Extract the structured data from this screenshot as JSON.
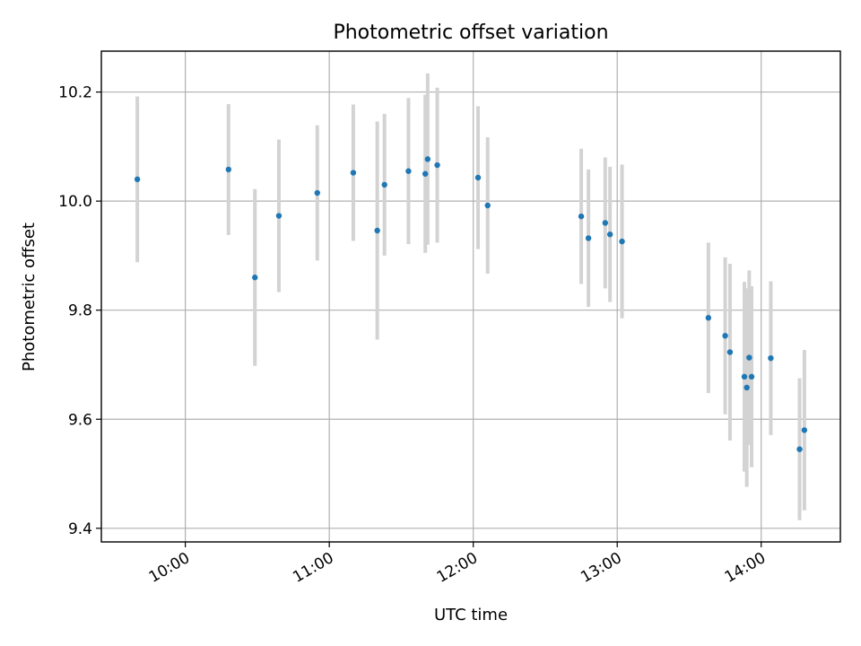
{
  "chart_data": {
    "type": "scatter",
    "title": "Photometric offset variation",
    "xlabel": "UTC time",
    "ylabel": "Photometric offset",
    "x_is_time": true,
    "xlim": [
      "09:25",
      "14:33"
    ],
    "ylim": [
      9.375,
      10.275
    ],
    "grid": true,
    "x_ticks": [
      "10:00",
      "11:00",
      "12:00",
      "13:00",
      "14:00"
    ],
    "y_ticks": [
      "9.4",
      "9.6",
      "9.8",
      "10.0",
      "10.2"
    ],
    "colors": {
      "point": "#1f77b4",
      "errorbar": "#d3d3d3",
      "grid": "#b0b0b0"
    },
    "series": [
      {
        "points": [
          {
            "t": "09:40",
            "y": 10.04,
            "err": 0.152
          },
          {
            "t": "10:18",
            "y": 10.058,
            "err": 0.12
          },
          {
            "t": "10:29",
            "y": 9.86,
            "err": 0.162
          },
          {
            "t": "10:39",
            "y": 9.973,
            "err": 0.14
          },
          {
            "t": "10:55",
            "y": 10.015,
            "err": 0.124
          },
          {
            "t": "11:10",
            "y": 10.052,
            "err": 0.125
          },
          {
            "t": "11:20",
            "y": 9.946,
            "err": 0.2
          },
          {
            "t": "11:23",
            "y": 10.03,
            "err": 0.13
          },
          {
            "t": "11:33",
            "y": 10.055,
            "err": 0.134
          },
          {
            "t": "11:40",
            "y": 10.05,
            "err": 0.145
          },
          {
            "t": "11:41",
            "y": 10.077,
            "err": 0.157
          },
          {
            "t": "11:45",
            "y": 10.066,
            "err": 0.142
          },
          {
            "t": "12:02",
            "y": 10.043,
            "err": 0.131
          },
          {
            "t": "12:06",
            "y": 9.992,
            "err": 0.125
          },
          {
            "t": "12:45",
            "y": 9.972,
            "err": 0.124
          },
          {
            "t": "12:48",
            "y": 9.932,
            "err": 0.126
          },
          {
            "t": "12:55",
            "y": 9.96,
            "err": 0.12
          },
          {
            "t": "12:57",
            "y": 9.939,
            "err": 0.124
          },
          {
            "t": "13:02",
            "y": 9.926,
            "err": 0.141
          },
          {
            "t": "13:38",
            "y": 9.786,
            "err": 0.138
          },
          {
            "t": "13:45",
            "y": 9.753,
            "err": 0.144
          },
          {
            "t": "13:47",
            "y": 9.723,
            "err": 0.162
          },
          {
            "t": "13:53",
            "y": 9.678,
            "err": 0.174
          },
          {
            "t": "13:54",
            "y": 9.658,
            "err": 0.182
          },
          {
            "t": "13:55",
            "y": 9.713,
            "err": 0.16
          },
          {
            "t": "13:56",
            "y": 9.678,
            "err": 0.166
          },
          {
            "t": "14:04",
            "y": 9.712,
            "err": 0.141
          },
          {
            "t": "14:16",
            "y": 9.545,
            "err": 0.13
          },
          {
            "t": "14:18",
            "y": 9.58,
            "err": 0.147
          }
        ]
      }
    ]
  }
}
